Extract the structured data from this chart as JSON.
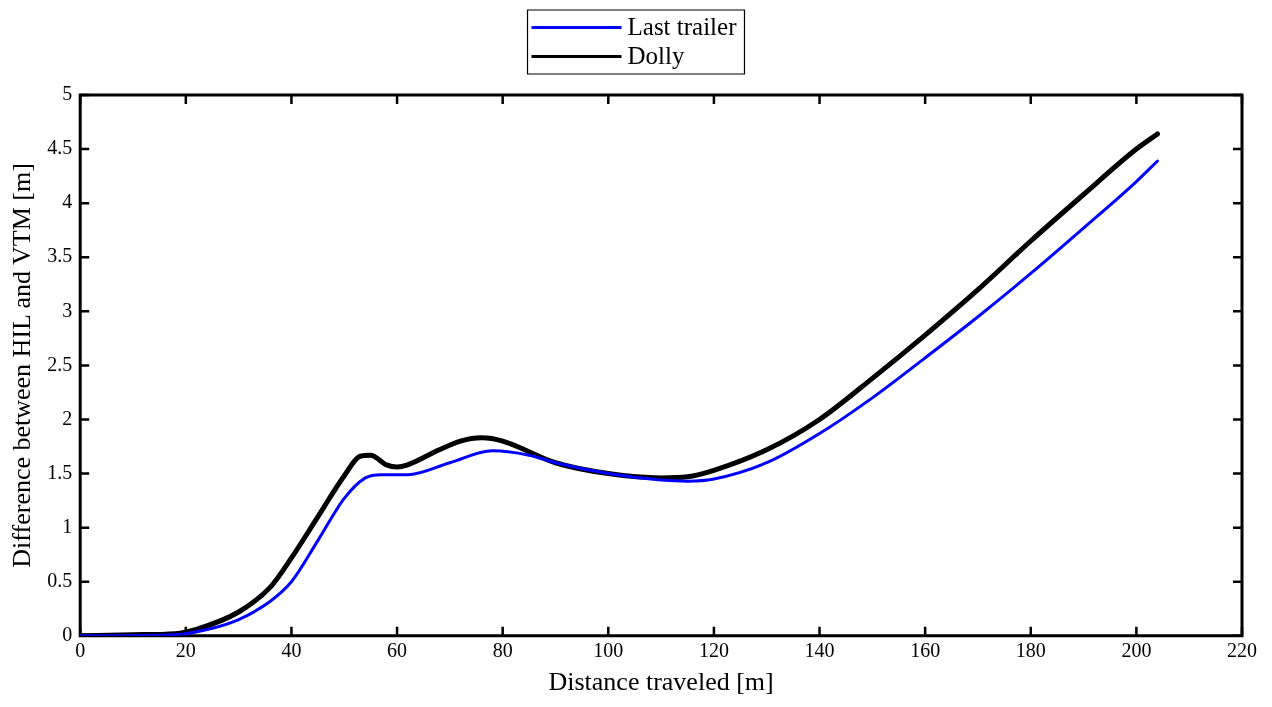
{
  "chart_data": {
    "type": "line",
    "xlabel": "Distance traveled [m]",
    "ylabel": "Difference between HIL and VTM [m]",
    "xlim": [
      0,
      220
    ],
    "xticks": [
      0,
      20,
      40,
      60,
      80,
      100,
      120,
      140,
      160,
      180,
      200,
      220
    ],
    "ylim": [
      0,
      5
    ],
    "yticks": [
      0,
      0.5,
      1,
      1.5,
      2,
      2.5,
      3,
      3.5,
      4,
      4.5,
      5
    ],
    "grid": false,
    "legend": "top",
    "marker": "none",
    "line_style": "solid",
    "series": [
      {
        "name": "Last trailer",
        "color": "#0000ff",
        "x": [
          0,
          18,
          25,
          30,
          36,
          40,
          45,
          50,
          54,
          57,
          62,
          70,
          78,
          85,
          90,
          100,
          110,
          115,
          120,
          130,
          140,
          150,
          160,
          170,
          180,
          190,
          200,
          204
        ],
        "values": [
          0,
          0.01,
          0.07,
          0.15,
          0.32,
          0.5,
          0.88,
          1.27,
          1.46,
          1.49,
          1.49,
          1.6,
          1.71,
          1.67,
          1.6,
          1.5,
          1.44,
          1.43,
          1.45,
          1.6,
          1.87,
          2.2,
          2.57,
          2.95,
          3.35,
          3.77,
          4.2,
          4.39
        ]
      },
      {
        "name": "Dolly",
        "color": "#000000",
        "x": [
          0,
          10,
          18,
          22,
          30,
          36,
          40,
          45,
          50,
          53,
          55,
          58,
          60,
          62,
          68,
          72,
          76,
          80,
          90,
          100,
          110,
          115,
          120,
          130,
          140,
          150,
          160,
          170,
          180,
          190,
          200,
          204
        ],
        "values": [
          0,
          0.01,
          0.02,
          0.06,
          0.22,
          0.45,
          0.72,
          1.1,
          1.48,
          1.66,
          1.67,
          1.58,
          1.56,
          1.58,
          1.72,
          1.8,
          1.83,
          1.8,
          1.6,
          1.5,
          1.46,
          1.47,
          1.53,
          1.72,
          2.0,
          2.38,
          2.78,
          3.2,
          3.65,
          4.08,
          4.5,
          4.64
        ]
      }
    ]
  }
}
